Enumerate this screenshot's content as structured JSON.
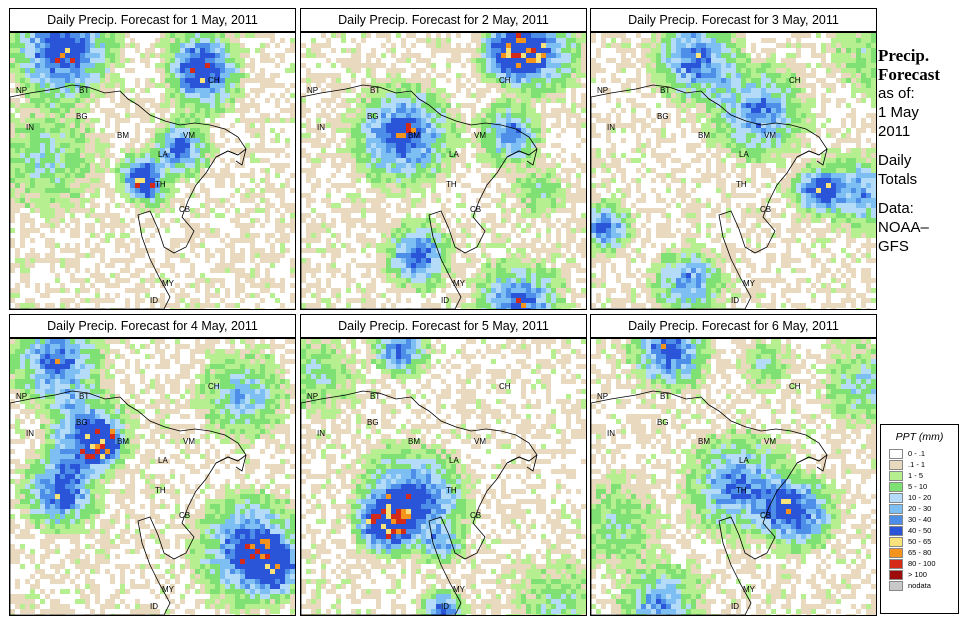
{
  "panels": [
    {
      "title": "Daily Precip. Forecast for  1 May, 2011"
    },
    {
      "title": "Daily Precip. Forecast for  2 May, 2011"
    },
    {
      "title": "Daily Precip. Forecast for  3 May, 2011"
    },
    {
      "title": "Daily Precip. Forecast for  4 May, 2011"
    },
    {
      "title": "Daily Precip. Forecast for  5 May, 2011"
    },
    {
      "title": "Daily Precip. Forecast for  6 May, 2011"
    }
  ],
  "map_labels": {
    "np": "NP",
    "bt": "BT",
    "bg": "BG",
    "in": "IN",
    "ch": "CH",
    "bm": "BM",
    "vm": "VM",
    "la": "LA",
    "th": "TH",
    "cb": "CB",
    "my": "MY",
    "id": "ID"
  },
  "side": {
    "title1": "Precip.",
    "title2": "Forecast",
    "asof": "as of:",
    "date1": "1 May",
    "date2": "2011",
    "daily": "Daily",
    "totals": "Totals",
    "data": "Data:",
    "source1": "NOAA–",
    "source2": "GFS"
  },
  "legend": {
    "title": "PPT (mm)",
    "classes": [
      {
        "label": "0 - .1",
        "color": "#ffffff"
      },
      {
        "label": ".1 - 1",
        "color": "#e8d9bf"
      },
      {
        "label": "1 - 5",
        "color": "#b5ef8f"
      },
      {
        "label": "5 - 10",
        "color": "#7fe173"
      },
      {
        "label": "10 - 20",
        "color": "#b4dcf8"
      },
      {
        "label": "20 - 30",
        "color": "#7dbff2"
      },
      {
        "label": "30 - 40",
        "color": "#4d8ee8"
      },
      {
        "label": "40 - 50",
        "color": "#2a55d8"
      },
      {
        "label": "50 - 65",
        "color": "#f8e27a"
      },
      {
        "label": "65 - 80",
        "color": "#f4941d"
      },
      {
        "label": "80 - 100",
        "color": "#d42a1a"
      },
      {
        "label": "> 100",
        "color": "#9c0c0c"
      },
      {
        "label": "nodata",
        "color": "#c8c8c8"
      }
    ]
  }
}
